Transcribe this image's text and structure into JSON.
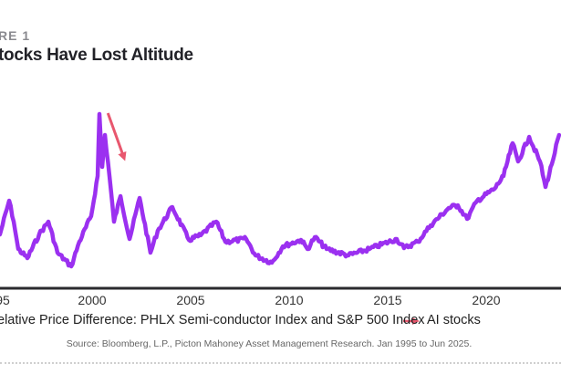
{
  "figure_label": "RE 1",
  "chart_data": {
    "type": "line",
    "title": "tocks Have Lost Altitude",
    "xlabel": "",
    "ylabel": "",
    "xlim": [
      1995,
      2025.5
    ],
    "ylim": [
      0,
      100
    ],
    "x_ticks": [
      "95",
      "2000",
      "2005",
      "2010",
      "2015",
      "2020"
    ],
    "grid": false,
    "legend_placement": "bottom",
    "series": [
      {
        "name": "elative Price Difference: PHLX Semi-conductor Index and S&P 500 Index",
        "color": "#9b30f0",
        "points": [
          [
            1995.32,
            29.5
          ],
          [
            1995.79,
            48
          ],
          [
            1996.02,
            36.5
          ],
          [
            1996.25,
            21.5
          ],
          [
            1996.71,
            16.5
          ],
          [
            1997.31,
            29.5
          ],
          [
            1997.78,
            36.5
          ],
          [
            1998.24,
            19.5
          ],
          [
            1998.94,
            12
          ],
          [
            1999.35,
            25.5
          ],
          [
            1999.95,
            39.5
          ],
          [
            2000.28,
            61.5
          ],
          [
            2000.37,
            95.5
          ],
          [
            2000.51,
            66.5
          ],
          [
            2000.65,
            84
          ],
          [
            2000.88,
            61.5
          ],
          [
            2001.11,
            36.5
          ],
          [
            2001.44,
            50.5
          ],
          [
            2001.9,
            27
          ],
          [
            2002.41,
            49.5
          ],
          [
            2002.96,
            19.5
          ],
          [
            2003.33,
            31.5
          ],
          [
            2004.07,
            44.5
          ],
          [
            2004.91,
            26.5
          ],
          [
            2005.51,
            29
          ],
          [
            2006.3,
            36.5
          ],
          [
            2006.76,
            25.5
          ],
          [
            2007.82,
            27
          ],
          [
            2008.29,
            18
          ],
          [
            2009.12,
            14
          ],
          [
            2009.68,
            23
          ],
          [
            2010.6,
            26.5
          ],
          [
            2010.93,
            21.5
          ],
          [
            2011.3,
            28
          ],
          [
            2011.9,
            21.5
          ],
          [
            2013.01,
            18
          ],
          [
            2014.07,
            21.5
          ],
          [
            2015.46,
            27
          ],
          [
            2015.83,
            22
          ],
          [
            2016.53,
            25.5
          ],
          [
            2017.18,
            34.5
          ],
          [
            2018.1,
            44
          ],
          [
            2018.56,
            45.5
          ],
          [
            2019.03,
            38
          ],
          [
            2019.54,
            48
          ],
          [
            2020.42,
            54.5
          ],
          [
            2020.88,
            61.5
          ],
          [
            2021.34,
            79.5
          ],
          [
            2021.62,
            69.5
          ],
          [
            2022.18,
            83
          ],
          [
            2022.73,
            69.5
          ],
          [
            2023.01,
            55.5
          ],
          [
            2023.33,
            68
          ],
          [
            2023.7,
            84
          ]
        ]
      }
    ],
    "annotation_arrow": {
      "color": "#e8576e",
      "from": [
        2000.8,
        96
      ],
      "to": [
        2001.6,
        72
      ]
    },
    "legend": [
      {
        "label": "elative Price Difference: PHLX Semi-conductor Index and S&P 500 Index"
      },
      {
        "label": "AI stocks",
        "color": "#e8576e"
      }
    ]
  },
  "source": "Source: Bloomberg, L.P., Picton Mahoney Asset Management Research. Jan 1995 to Jun 2025."
}
